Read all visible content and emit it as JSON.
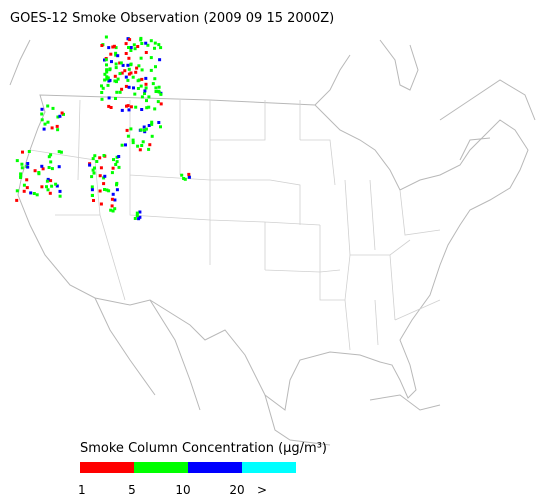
{
  "title": "GOES-12 Smoke Observation (2009 09 15  2000Z)",
  "legend": {
    "title": "Smoke Column Concentration (μg/m³)",
    "bins": [
      {
        "color": "#ff0000"
      },
      {
        "color": "#00ff00"
      },
      {
        "color": "#0000ff"
      },
      {
        "color": "#00ffff"
      }
    ],
    "labels": [
      "1",
      "5",
      "10",
      "20",
      ">"
    ]
  }
}
